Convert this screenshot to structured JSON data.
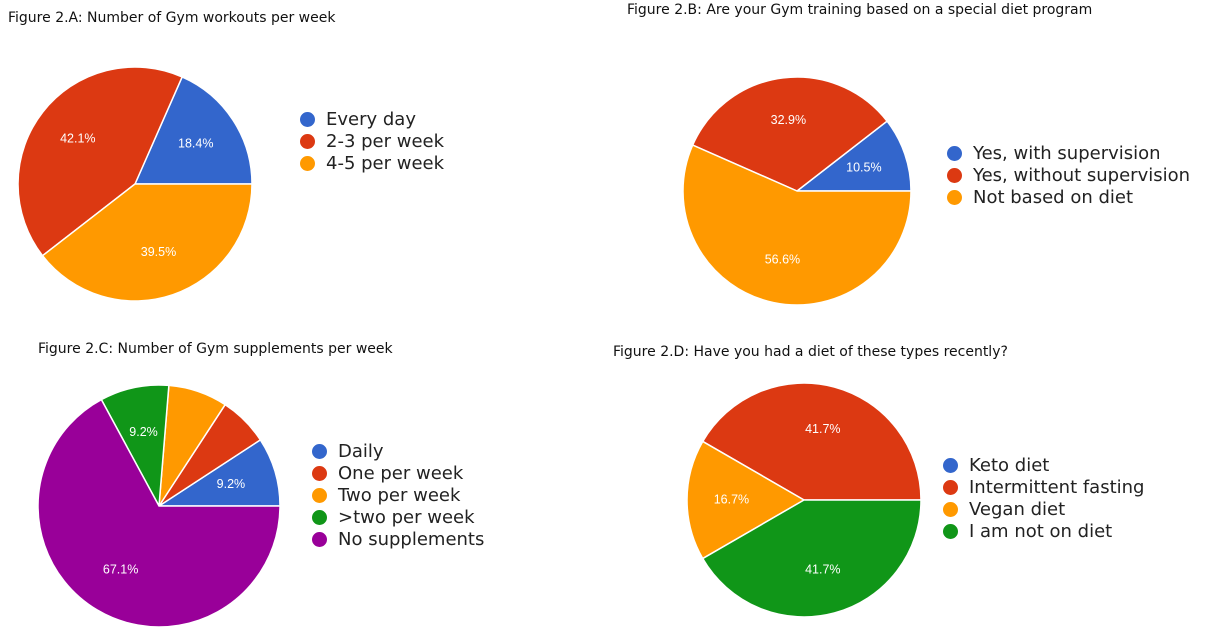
{
  "chart_data": [
    {
      "type": "pie",
      "title": "Figure 2.A: Number of Gym workouts per week",
      "slices": [
        {
          "name": "Every day",
          "value": 18.4,
          "label": "18.4%",
          "color": "#3366cc"
        },
        {
          "name": "2-3 per week",
          "value": 42.1,
          "label": "42.1%",
          "color": "#dc3912"
        },
        {
          "name": "4-5 per week",
          "value": 39.5,
          "label": "39.5%",
          "color": "#ff9900"
        }
      ],
      "legend_position": "right"
    },
    {
      "type": "pie",
      "title": "Figure 2.B: Are your Gym training based on a special diet program",
      "slices": [
        {
          "name": "Yes, with supervision",
          "value": 10.5,
          "label": "10.5%",
          "color": "#3366cc"
        },
        {
          "name": "Yes, without supervision",
          "value": 32.9,
          "label": "32.9%",
          "color": "#dc3912"
        },
        {
          "name": "Not based on diet",
          "value": 56.6,
          "label": "56.6%",
          "color": "#ff9900"
        }
      ],
      "legend_position": "right"
    },
    {
      "type": "pie",
      "title": "Figure 2.C: Number of Gym supplements per week",
      "slices": [
        {
          "name": "Daily",
          "value": 9.2,
          "label": "9.2%",
          "color": "#3366cc"
        },
        {
          "name": "One per week",
          "value": 6.6,
          "label": "",
          "color": "#dc3912"
        },
        {
          "name": "Two per week",
          "value": 7.9,
          "label": "",
          "color": "#ff9900"
        },
        {
          "name": ">two per week",
          "value": 9.2,
          "label": "9.2%",
          "color": "#109618"
        },
        {
          "name": "No supplements",
          "value": 67.1,
          "label": "67.1%",
          "color": "#990099"
        }
      ],
      "legend_position": "right"
    },
    {
      "type": "pie",
      "title": "Figure 2.D: Have you had a diet of these types recently?",
      "slices": [
        {
          "name": "Keto diet",
          "value": 0,
          "label": "",
          "color": "#3366cc"
        },
        {
          "name": "Intermittent fasting",
          "value": 41.7,
          "label": "41.7%",
          "color": "#dc3912"
        },
        {
          "name": "Vegan diet",
          "value": 16.7,
          "label": "16.7%",
          "color": "#ff9900"
        },
        {
          "name": "I am not on diet",
          "value": 41.7,
          "label": "41.7%",
          "color": "#109618"
        }
      ],
      "legend_position": "right"
    }
  ]
}
